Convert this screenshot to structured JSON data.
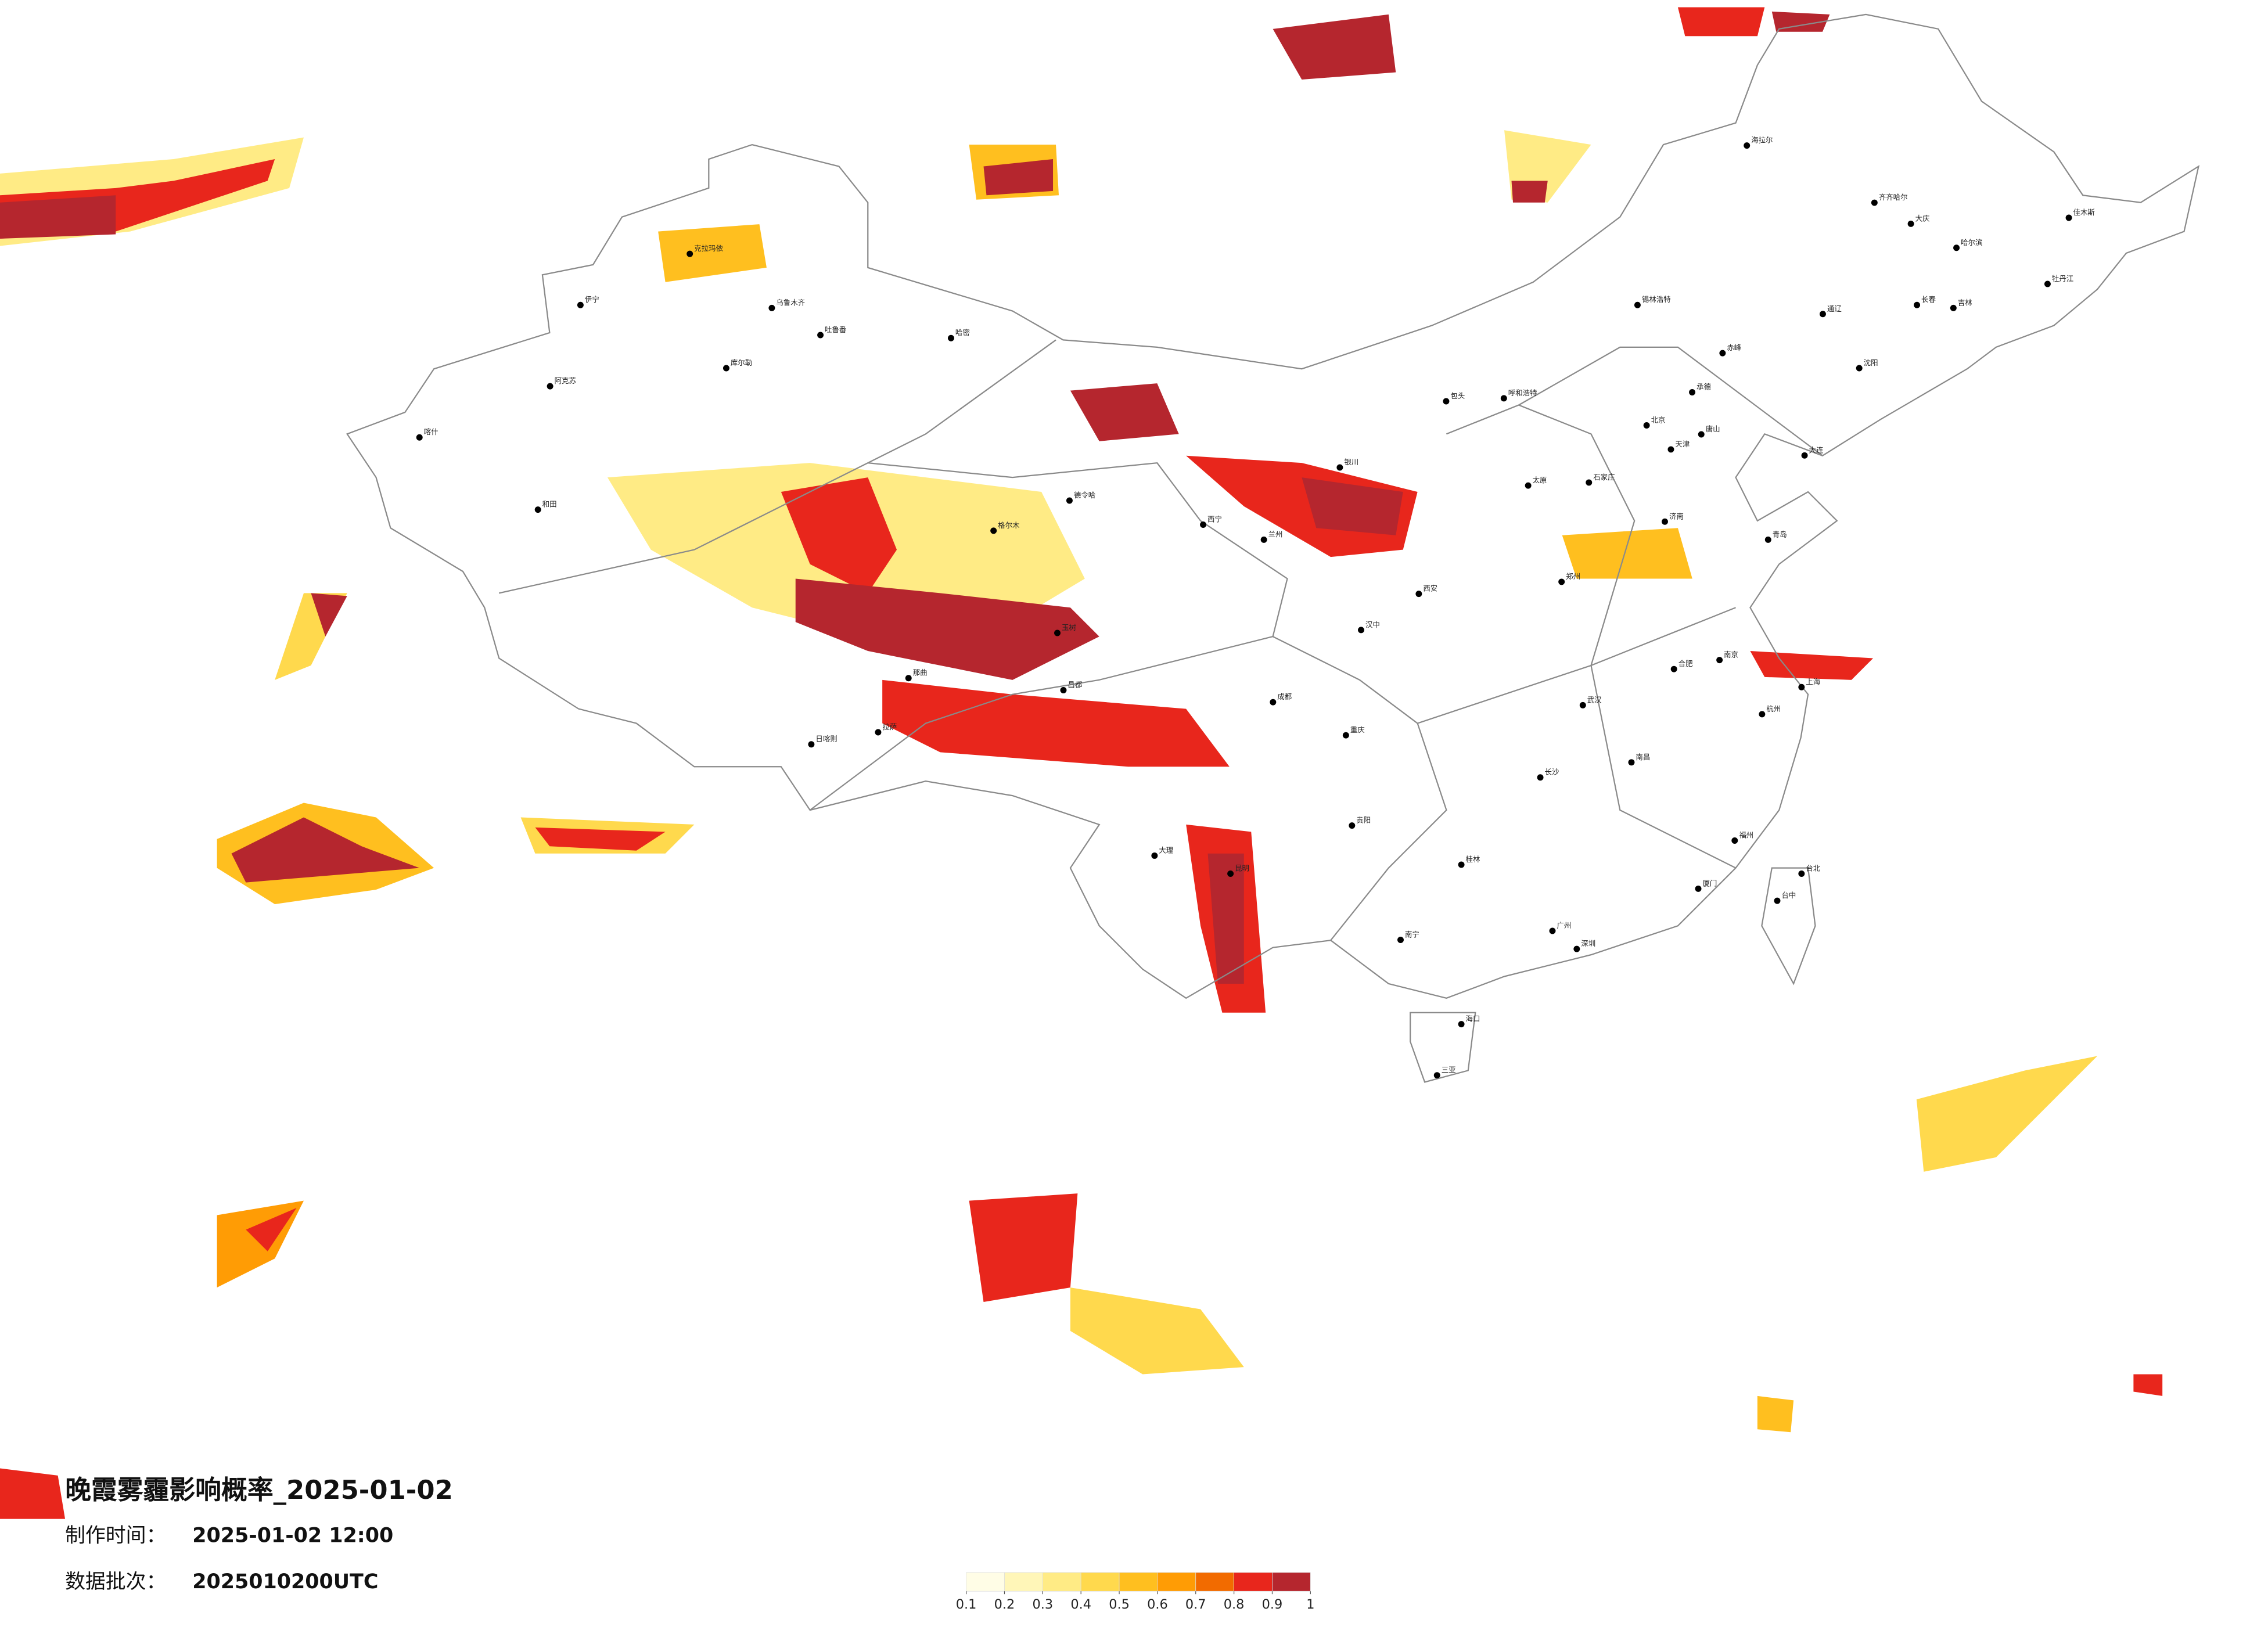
{
  "map": {
    "title": "晚霞雾霾影响概率_2025-01-02",
    "made_label": "制作时间：",
    "made_value": "2025-01-02 12:00",
    "batch_label": "数据批次：",
    "batch_value": "2025010200UTC",
    "colorbar": {
      "ticks": [
        0.1,
        0.2,
        0.3,
        0.4,
        0.5,
        0.6,
        0.7,
        0.8,
        0.9,
        1
      ],
      "colors": [
        "#fffde6",
        "#fff6b8",
        "#ffeb85",
        "#ffd94d",
        "#ffbf1f",
        "#ff9c05",
        "#f26b00",
        "#e8261c",
        "#b5262e"
      ]
    },
    "cities": [
      {
        "name": "伊宁",
        "lon": 81.3,
        "lat": 43.9
      },
      {
        "name": "阿克苏",
        "lon": 80.3,
        "lat": 41.2
      },
      {
        "name": "喀什",
        "lon": 76.0,
        "lat": 39.5
      },
      {
        "name": "和田",
        "lon": 79.9,
        "lat": 37.1
      },
      {
        "name": "乌鲁木齐",
        "lon": 87.6,
        "lat": 43.8
      },
      {
        "name": "克拉玛依",
        "lon": 84.9,
        "lat": 45.6
      },
      {
        "name": "吐鲁番",
        "lon": 89.2,
        "lat": 42.9
      },
      {
        "name": "库尔勒",
        "lon": 86.1,
        "lat": 41.8
      },
      {
        "name": "哈密",
        "lon": 93.5,
        "lat": 42.8
      },
      {
        "name": "格尔木",
        "lon": 94.9,
        "lat": 36.4
      },
      {
        "name": "德令哈",
        "lon": 97.4,
        "lat": 37.4
      },
      {
        "name": "西宁",
        "lon": 101.8,
        "lat": 36.6
      },
      {
        "name": "兰州",
        "lon": 103.8,
        "lat": 36.1
      },
      {
        "name": "银川",
        "lon": 106.3,
        "lat": 38.5
      },
      {
        "name": "呼和浩特",
        "lon": 111.7,
        "lat": 40.8
      },
      {
        "name": "包头",
        "lon": 109.8,
        "lat": 40.7
      },
      {
        "name": "太原",
        "lon": 112.5,
        "lat": 37.9
      },
      {
        "name": "石家庄",
        "lon": 114.5,
        "lat": 38.0
      },
      {
        "name": "北京",
        "lon": 116.4,
        "lat": 39.9
      },
      {
        "name": "天津",
        "lon": 117.2,
        "lat": 39.1
      },
      {
        "name": "唐山",
        "lon": 118.2,
        "lat": 39.6
      },
      {
        "name": "承德",
        "lon": 117.9,
        "lat": 41.0
      },
      {
        "name": "赤峰",
        "lon": 118.9,
        "lat": 42.3
      },
      {
        "name": "通辽",
        "lon": 122.2,
        "lat": 43.6
      },
      {
        "name": "沈阳",
        "lon": 123.4,
        "lat": 41.8
      },
      {
        "name": "大连",
        "lon": 121.6,
        "lat": 38.9
      },
      {
        "name": "长春",
        "lon": 125.3,
        "lat": 43.9
      },
      {
        "name": "吉林",
        "lon": 126.5,
        "lat": 43.8
      },
      {
        "name": "哈尔滨",
        "lon": 126.6,
        "lat": 45.8
      },
      {
        "name": "齐齐哈尔",
        "lon": 123.9,
        "lat": 47.3
      },
      {
        "name": "大庆",
        "lon": 125.1,
        "lat": 46.6
      },
      {
        "name": "牡丹江",
        "lon": 129.6,
        "lat": 44.6
      },
      {
        "name": "佳木斯",
        "lon": 130.3,
        "lat": 46.8
      },
      {
        "name": "海拉尔",
        "lon": 119.7,
        "lat": 49.2
      },
      {
        "name": "锡林浩特",
        "lon": 116.1,
        "lat": 43.9
      },
      {
        "name": "济南",
        "lon": 117.0,
        "lat": 36.7
      },
      {
        "name": "青岛",
        "lon": 120.4,
        "lat": 36.1
      },
      {
        "name": "郑州",
        "lon": 113.6,
        "lat": 34.7
      },
      {
        "name": "西安",
        "lon": 108.9,
        "lat": 34.3
      },
      {
        "name": "汉中",
        "lon": 107.0,
        "lat": 33.1
      },
      {
        "name": "成都",
        "lon": 104.1,
        "lat": 30.7
      },
      {
        "name": "重庆",
        "lon": 106.5,
        "lat": 29.6
      },
      {
        "name": "贵阳",
        "lon": 106.7,
        "lat": 26.6
      },
      {
        "name": "昆明",
        "lon": 102.7,
        "lat": 25.0
      },
      {
        "name": "大理",
        "lon": 100.2,
        "lat": 25.6
      },
      {
        "name": "南宁",
        "lon": 108.3,
        "lat": 22.8
      },
      {
        "name": "桂林",
        "lon": 110.3,
        "lat": 25.3
      },
      {
        "name": "广州",
        "lon": 113.3,
        "lat": 23.1
      },
      {
        "name": "深圳",
        "lon": 114.1,
        "lat": 22.5
      },
      {
        "name": "海口",
        "lon": 110.3,
        "lat": 20.0
      },
      {
        "name": "三亚",
        "lon": 109.5,
        "lat": 18.3
      },
      {
        "name": "长沙",
        "lon": 112.9,
        "lat": 28.2
      },
      {
        "name": "武汉",
        "lon": 114.3,
        "lat": 30.6
      },
      {
        "name": "南昌",
        "lon": 115.9,
        "lat": 28.7
      },
      {
        "name": "合肥",
        "lon": 117.3,
        "lat": 31.8
      },
      {
        "name": "南京",
        "lon": 118.8,
        "lat": 32.1
      },
      {
        "name": "上海",
        "lon": 121.5,
        "lat": 31.2
      },
      {
        "name": "杭州",
        "lon": 120.2,
        "lat": 30.3
      },
      {
        "name": "福州",
        "lon": 119.3,
        "lat": 26.1
      },
      {
        "name": "厦门",
        "lon": 118.1,
        "lat": 24.5
      },
      {
        "name": "台北",
        "lon": 121.5,
        "lat": 25.0
      },
      {
        "name": "台中",
        "lon": 120.7,
        "lat": 24.1
      },
      {
        "name": "拉萨",
        "lon": 91.1,
        "lat": 29.7
      },
      {
        "name": "日喀则",
        "lon": 88.9,
        "lat": 29.3
      },
      {
        "name": "那曲",
        "lon": 92.1,
        "lat": 31.5
      },
      {
        "name": "昌都",
        "lon": 97.2,
        "lat": 31.1
      },
      {
        "name": "玉树",
        "lon": 97.0,
        "lat": 33.0
      }
    ]
  }
}
